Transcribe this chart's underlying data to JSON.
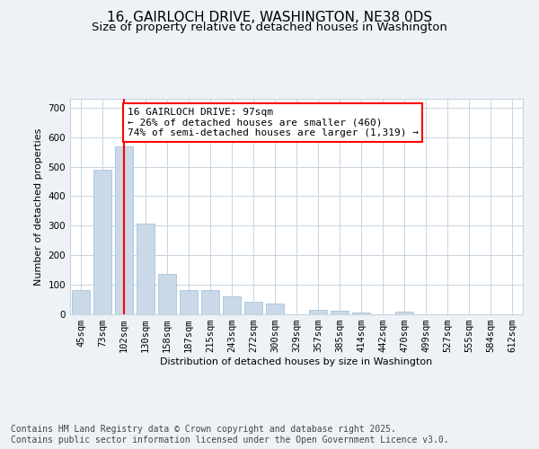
{
  "title_line1": "16, GAIRLOCH DRIVE, WASHINGTON, NE38 0DS",
  "title_line2": "Size of property relative to detached houses in Washington",
  "xlabel": "Distribution of detached houses by size in Washington",
  "ylabel": "Number of detached properties",
  "categories": [
    "45sqm",
    "73sqm",
    "102sqm",
    "130sqm",
    "158sqm",
    "187sqm",
    "215sqm",
    "243sqm",
    "272sqm",
    "300sqm",
    "329sqm",
    "357sqm",
    "385sqm",
    "414sqm",
    "442sqm",
    "470sqm",
    "499sqm",
    "527sqm",
    "555sqm",
    "584sqm",
    "612sqm"
  ],
  "values": [
    82,
    490,
    570,
    308,
    138,
    83,
    83,
    60,
    42,
    35,
    0,
    15,
    12,
    7,
    0,
    10,
    0,
    0,
    0,
    0,
    0
  ],
  "bar_color": "#c9d9e8",
  "bar_edge_color": "#a8c4d8",
  "vline_x": 2,
  "vline_color": "red",
  "annotation_text": "16 GAIRLOCH DRIVE: 97sqm\n← 26% of detached houses are smaller (460)\n74% of semi-detached houses are larger (1,319) →",
  "annotation_box_color": "white",
  "annotation_box_edge_color": "red",
  "ylim": [
    0,
    730
  ],
  "yticks": [
    0,
    100,
    200,
    300,
    400,
    500,
    600,
    700
  ],
  "footnote": "Contains HM Land Registry data © Crown copyright and database right 2025.\nContains public sector information licensed under the Open Government Licence v3.0.",
  "bg_color": "#eef2f7",
  "plot_bg_color": "white",
  "grid_color": "#c8d4e0",
  "title_fontsize": 11,
  "subtitle_fontsize": 9.5,
  "axis_label_fontsize": 8,
  "tick_fontsize": 7.5,
  "footnote_fontsize": 7,
  "annotation_fontsize": 8
}
